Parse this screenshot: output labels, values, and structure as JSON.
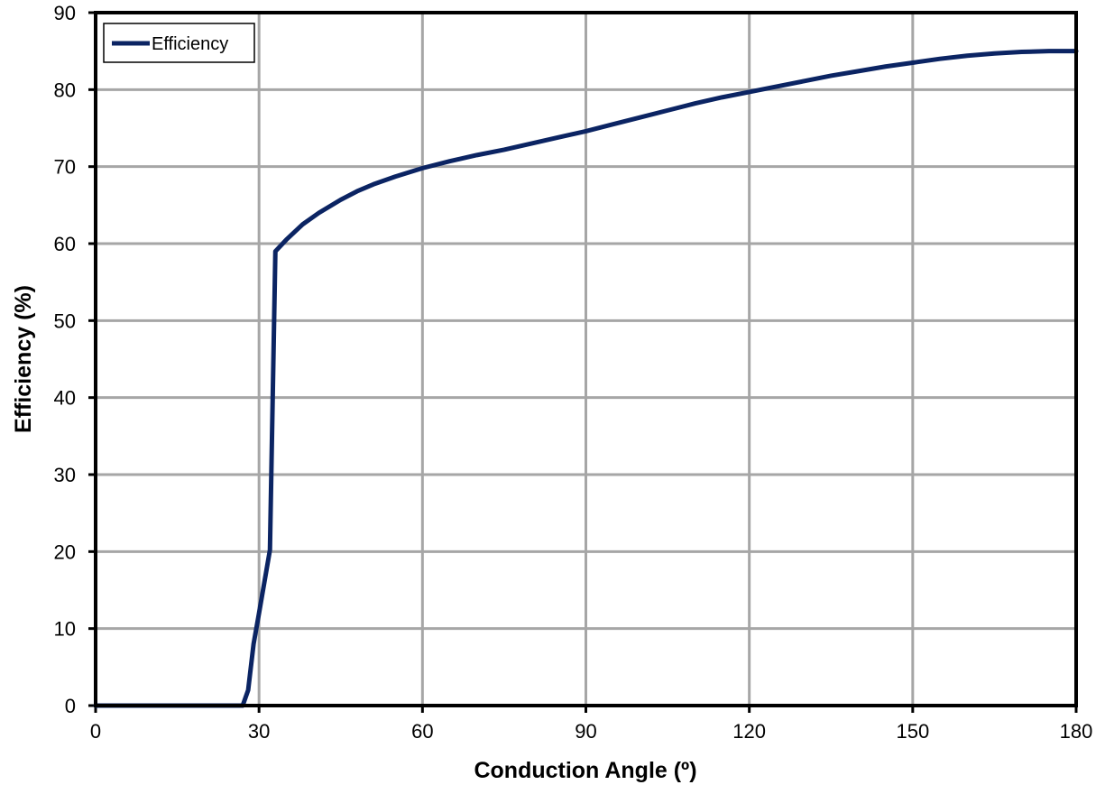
{
  "chart_data": {
    "type": "line",
    "title": "",
    "xlabel": "Conduction Angle (º)",
    "ylabel": "Efficiency (%)",
    "xlim": [
      0,
      180
    ],
    "ylim": [
      0,
      90
    ],
    "x_ticks": [
      "0",
      "30",
      "60",
      "90",
      "120",
      "150",
      "180"
    ],
    "y_ticks": [
      "0",
      "10",
      "20",
      "30",
      "40",
      "50",
      "60",
      "70",
      "80",
      "90"
    ],
    "grid": true,
    "legend_position": "top-left",
    "series": [
      {
        "name": "Efficiency",
        "color": "#0b2463",
        "points": [
          [
            0,
            0
          ],
          [
            10,
            0
          ],
          [
            20,
            0
          ],
          [
            27,
            0
          ],
          [
            28,
            2
          ],
          [
            29,
            8
          ],
          [
            30,
            12
          ],
          [
            32,
            20.2
          ],
          [
            33,
            59
          ],
          [
            35,
            60.5
          ],
          [
            38,
            62.5
          ],
          [
            41,
            64
          ],
          [
            45,
            65.7
          ],
          [
            48,
            66.8
          ],
          [
            51,
            67.7
          ],
          [
            55,
            68.7
          ],
          [
            60,
            69.8
          ],
          [
            65,
            70.7
          ],
          [
            70,
            71.5
          ],
          [
            75,
            72.2
          ],
          [
            80,
            73
          ],
          [
            85,
            73.8
          ],
          [
            90,
            74.6
          ],
          [
            95,
            75.5
          ],
          [
            100,
            76.4
          ],
          [
            105,
            77.3
          ],
          [
            110,
            78.2
          ],
          [
            115,
            79
          ],
          [
            120,
            79.7
          ],
          [
            125,
            80.4
          ],
          [
            130,
            81.1
          ],
          [
            135,
            81.8
          ],
          [
            140,
            82.4
          ],
          [
            145,
            83
          ],
          [
            150,
            83.5
          ],
          [
            155,
            84
          ],
          [
            160,
            84.4
          ],
          [
            165,
            84.7
          ],
          [
            170,
            84.9
          ],
          [
            175,
            85
          ],
          [
            180,
            85
          ]
        ]
      }
    ]
  }
}
